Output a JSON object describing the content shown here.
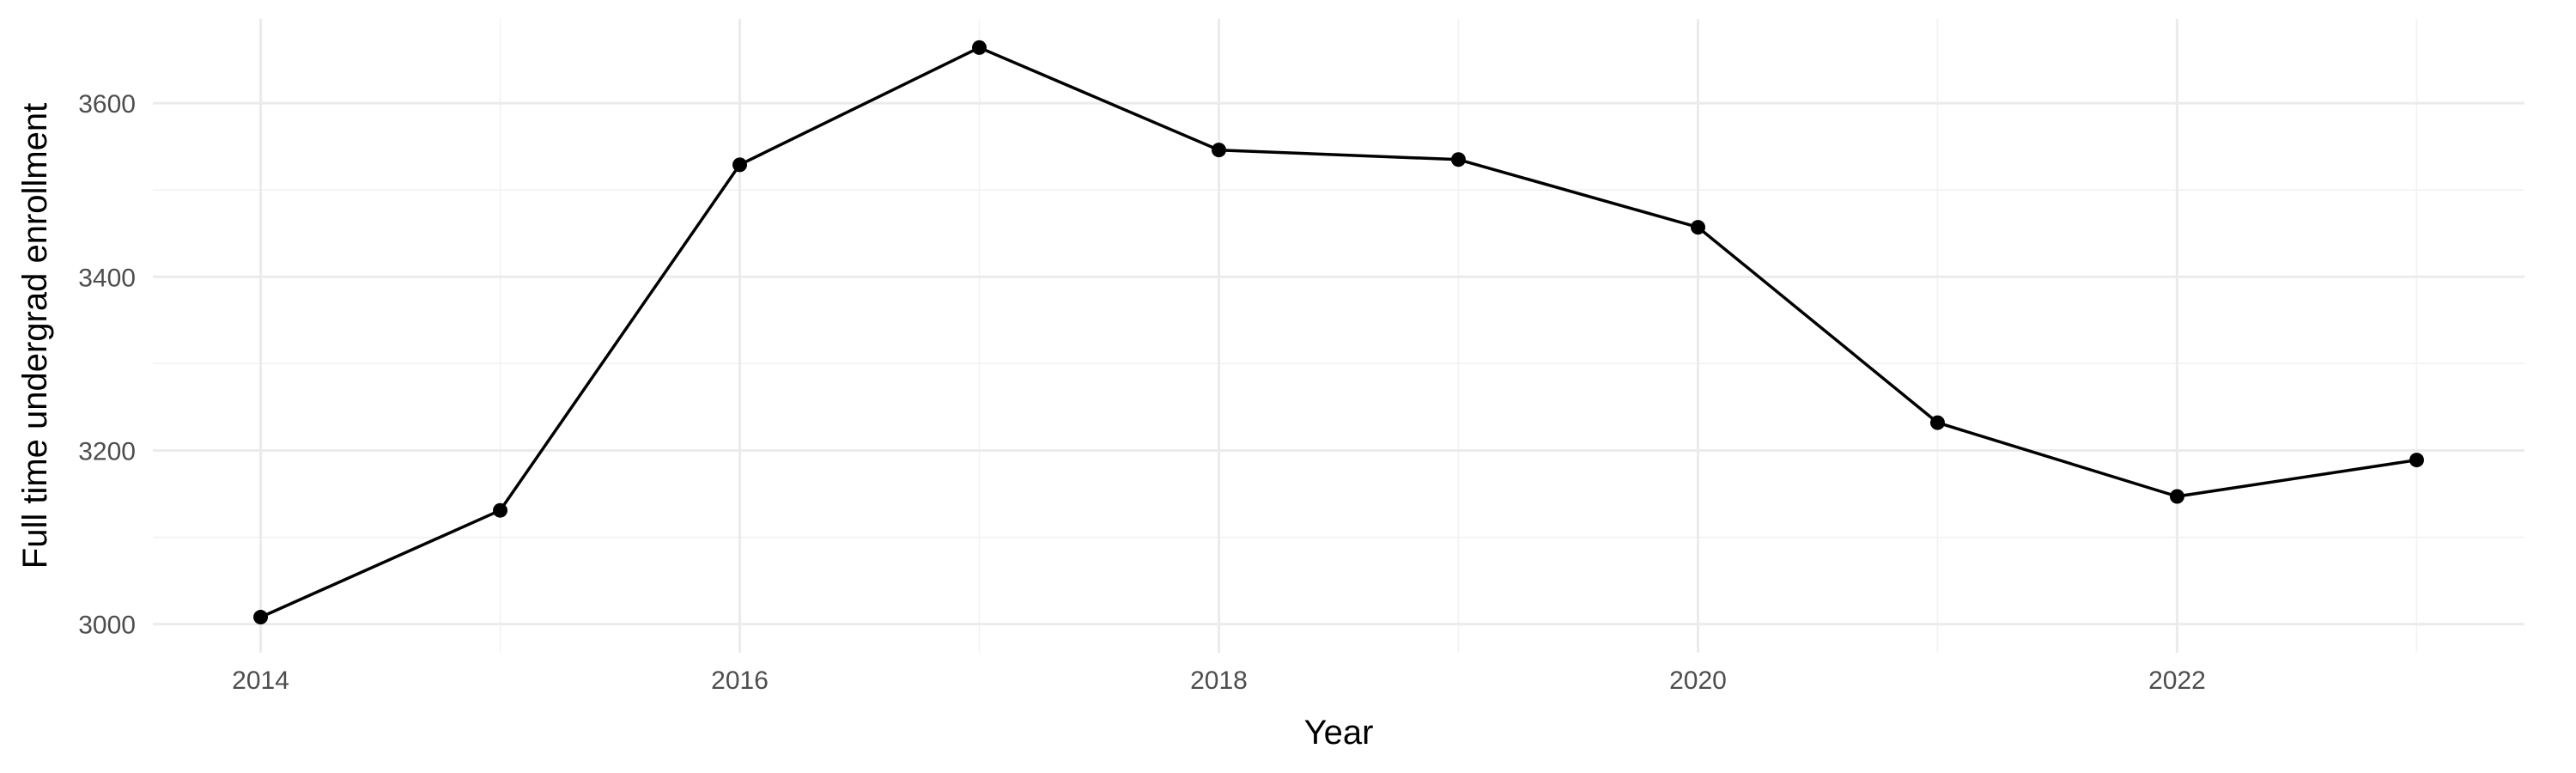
{
  "chart_data": {
    "type": "line",
    "title": "",
    "xlabel": "Year",
    "ylabel": "Full time undergrad enrollment",
    "x": [
      2014,
      2015,
      2016,
      2017,
      2018,
      2019,
      2020,
      2021,
      2022,
      2023
    ],
    "series": [
      {
        "values": [
          3008,
          3131,
          3529,
          3664,
          3546,
          3535,
          3457,
          3232,
          3147,
          3189
        ]
      }
    ],
    "xlim": [
      2013.55,
      2023.45
    ],
    "ylim": [
      2967,
      3697
    ],
    "x_ticks": [
      2014,
      2016,
      2018,
      2020,
      2022
    ],
    "x_tick_labels": [
      "2014",
      "2016",
      "2018",
      "2020",
      "2022"
    ],
    "y_ticks": [
      3000,
      3200,
      3400,
      3600
    ],
    "y_tick_labels": [
      "3000",
      "3200",
      "3400",
      "3600"
    ],
    "grid": true,
    "legend": "none",
    "colors": {
      "line": "#000000",
      "point": "#000000",
      "grid_major": "#ebebeb",
      "grid_minor": "#f2f2f2",
      "tick_label": "#4d4d4d"
    }
  }
}
